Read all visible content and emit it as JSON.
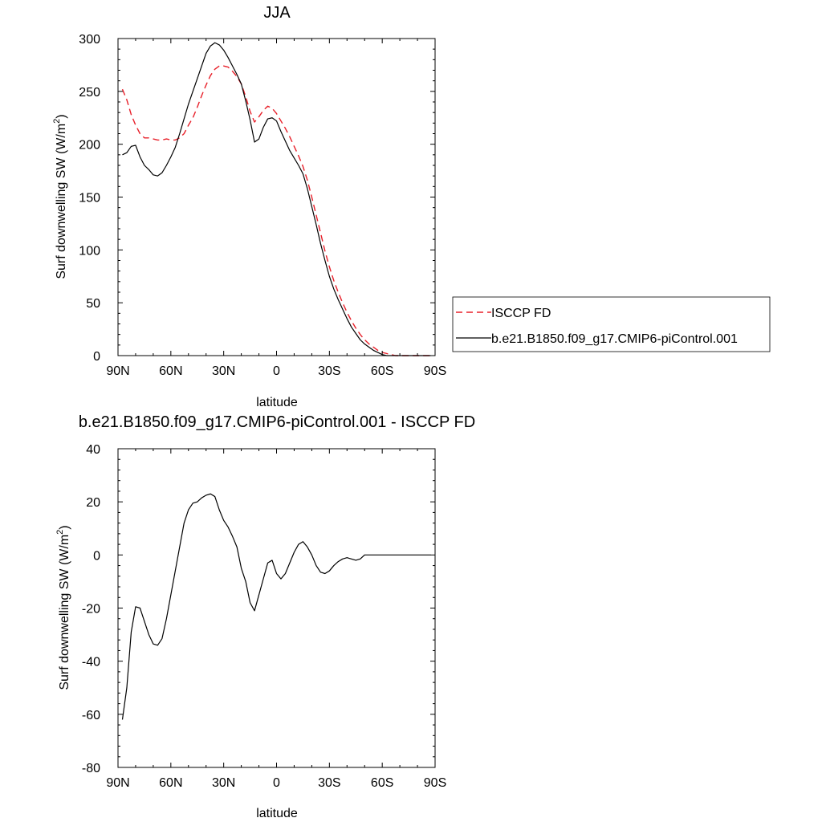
{
  "chart_data": [
    {
      "type": "line",
      "title": "JJA",
      "xlabel": "latitude",
      "ylabel": "Surf downwelling SW (W/m",
      "ylabel_sup": "2",
      "ylabel_close": ")",
      "xlim": [
        90,
        -90
      ],
      "ylim": [
        0,
        300
      ],
      "x_ticks": [
        90,
        60,
        30,
        0,
        -30,
        -60,
        -90
      ],
      "x_tick_labels": [
        "90N",
        "60N",
        "30N",
        "0",
        "30S",
        "60S",
        "90S"
      ],
      "y_ticks": [
        0,
        50,
        100,
        150,
        200,
        250,
        300
      ],
      "y_tick_labels": [
        "0",
        "50",
        "100",
        "150",
        "200",
        "250",
        "300"
      ],
      "legend_position": "right",
      "series": [
        {
          "name": "ISCCP FD",
          "color": "#e8202a",
          "dash": "dashed",
          "x": [
            87.5,
            85,
            82.5,
            80,
            77.5,
            75,
            72.5,
            70,
            67.5,
            65,
            62.5,
            60,
            57.5,
            55,
            52.5,
            50,
            47.5,
            45,
            42.5,
            40,
            37.5,
            35,
            32.5,
            30,
            27.5,
            25,
            22.5,
            20,
            17.5,
            15,
            12.5,
            10,
            7.5,
            5,
            2.5,
            0,
            -2.5,
            -5,
            -7.5,
            -10,
            -12.5,
            -15,
            -17.5,
            -20,
            -22.5,
            -25,
            -27.5,
            -30,
            -32.5,
            -35,
            -37.5,
            -40,
            -42.5,
            -45,
            -47.5,
            -50,
            -52.5,
            -55,
            -57.5,
            -60,
            -62.5,
            -65,
            -67.5,
            -70,
            -72.5,
            -75,
            -77.5,
            -80,
            -82.5,
            -85,
            -87.5
          ],
          "y": [
            252,
            242,
            228,
            218,
            210,
            206,
            206,
            205,
            204,
            204,
            205,
            204,
            204,
            206,
            210,
            218,
            225,
            235,
            246,
            256,
            265,
            271,
            274,
            274,
            273,
            269,
            264,
            257,
            245,
            231,
            221,
            226,
            232,
            236,
            234,
            229,
            222,
            215,
            207,
            198,
            189,
            179,
            166,
            150,
            133,
            116,
            99,
            84,
            71,
            60,
            50,
            41,
            33,
            26,
            20,
            15,
            11,
            8,
            5,
            3,
            2,
            1,
            0,
            0,
            0,
            0,
            0,
            0,
            0,
            0,
            0
          ]
        },
        {
          "name": "b.e21.B1850.f09_g17.CMIP6-piControl.001",
          "color": "#000000",
          "dash": "solid",
          "x": [
            87.5,
            85,
            82.5,
            80,
            77.5,
            75,
            72.5,
            70,
            67.5,
            65,
            62.5,
            60,
            57.5,
            55,
            52.5,
            50,
            47.5,
            45,
            42.5,
            40,
            37.5,
            35,
            32.5,
            30,
            27.5,
            25,
            22.5,
            20,
            17.5,
            15,
            12.5,
            10,
            7.5,
            5,
            2.5,
            0,
            -2.5,
            -5,
            -7.5,
            -10,
            -12.5,
            -15,
            -17.5,
            -20,
            -22.5,
            -25,
            -27.5,
            -30,
            -32.5,
            -35,
            -37.5,
            -40,
            -42.5,
            -45,
            -47.5,
            -50,
            -52.5,
            -55,
            -57.5,
            -60,
            -62.5,
            -65,
            -67.5,
            -70,
            -72.5,
            -75,
            -77.5,
            -80,
            -82.5,
            -85,
            -87.5
          ],
          "y": [
            190,
            192,
            198,
            199,
            188,
            180,
            176,
            171,
            170,
            173,
            180,
            188,
            197,
            210,
            224,
            238,
            250,
            262,
            274,
            286,
            293,
            296,
            294,
            289,
            282,
            274,
            266,
            257,
            241,
            223,
            202,
            205,
            216,
            224,
            225,
            222,
            212,
            203,
            194,
            187,
            180,
            172,
            158,
            141,
            124,
            106,
            90,
            75,
            63,
            53,
            44,
            35,
            27,
            21,
            15,
            11,
            8,
            5,
            3,
            1,
            0,
            0,
            0,
            0,
            0,
            0,
            0,
            0,
            0,
            0,
            0
          ]
        }
      ]
    },
    {
      "type": "line",
      "title": "b.e21.B1850.f09_g17.CMIP6-piControl.001 - ISCCP FD",
      "xlabel": "latitude",
      "ylabel": "Surf downwelling SW (W/m",
      "ylabel_sup": "2",
      "ylabel_close": ")",
      "xlim": [
        90,
        -90
      ],
      "ylim": [
        -80,
        40
      ],
      "x_ticks": [
        90,
        60,
        30,
        0,
        -30,
        -60,
        -90
      ],
      "x_tick_labels": [
        "90N",
        "60N",
        "30N",
        "0",
        "30S",
        "60S",
        "90S"
      ],
      "y_ticks": [
        -80,
        -60,
        -40,
        -20,
        0,
        20,
        40
      ],
      "y_tick_labels": [
        "-80",
        "-60",
        "-40",
        "-20",
        "0",
        "20",
        "40"
      ],
      "series": [
        {
          "color": "#000000",
          "dash": "solid",
          "x": [
            87.5,
            85,
            82.5,
            80,
            77.5,
            75,
            72.5,
            70,
            67.5,
            65,
            62.5,
            60,
            57.5,
            55,
            52.5,
            50,
            47.5,
            45,
            42.5,
            40,
            37.5,
            35,
            32.5,
            30,
            27.5,
            25,
            22.5,
            20,
            17.5,
            15,
            12.5,
            10,
            7.5,
            5,
            2.5,
            0,
            -2.5,
            -5,
            -7.5,
            -10,
            -12.5,
            -15,
            -17.5,
            -20,
            -22.5,
            -25,
            -27.5,
            -30,
            -32.5,
            -35,
            -37.5,
            -40,
            -42.5,
            -45,
            -47.5,
            -50,
            -52.5,
            -55,
            -57.5,
            -60,
            -62.5,
            -65,
            -67.5,
            -70,
            -72.5,
            -75,
            -77.5,
            -80,
            -82.5,
            -85,
            -87.5
          ],
          "y": [
            -62,
            -50,
            -29,
            -19.5,
            -20,
            -25,
            -30,
            -33.5,
            -34,
            -31.5,
            -24,
            -15,
            -6,
            3,
            12,
            17,
            19.5,
            20,
            21.5,
            22.5,
            23,
            22,
            17,
            13,
            10.5,
            7,
            3,
            -5,
            -10,
            -18,
            -21,
            -15,
            -9,
            -3,
            -2,
            -7,
            -9,
            -7,
            -3,
            1,
            4,
            5,
            3,
            0,
            -4,
            -6.5,
            -7,
            -6,
            -4,
            -2.5,
            -1.5,
            -1,
            -1.5,
            -2,
            -1.5,
            0,
            0,
            0,
            0,
            0,
            0,
            0,
            0,
            0,
            0,
            0,
            0,
            0,
            0,
            0,
            0
          ]
        }
      ]
    }
  ]
}
